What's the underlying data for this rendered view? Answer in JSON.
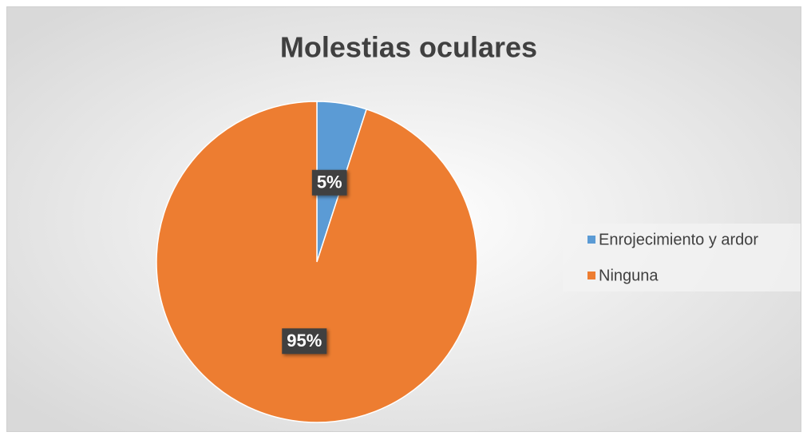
{
  "chart_data": {
    "type": "pie",
    "title": "Molestias oculares",
    "categories": [
      "Enrojecimiento y ardor",
      "Ninguna"
    ],
    "values": [
      5,
      95
    ],
    "value_labels": [
      "5%",
      "95%"
    ],
    "colors": [
      "#5b9bd5",
      "#ed7d31"
    ],
    "legend": "right"
  }
}
